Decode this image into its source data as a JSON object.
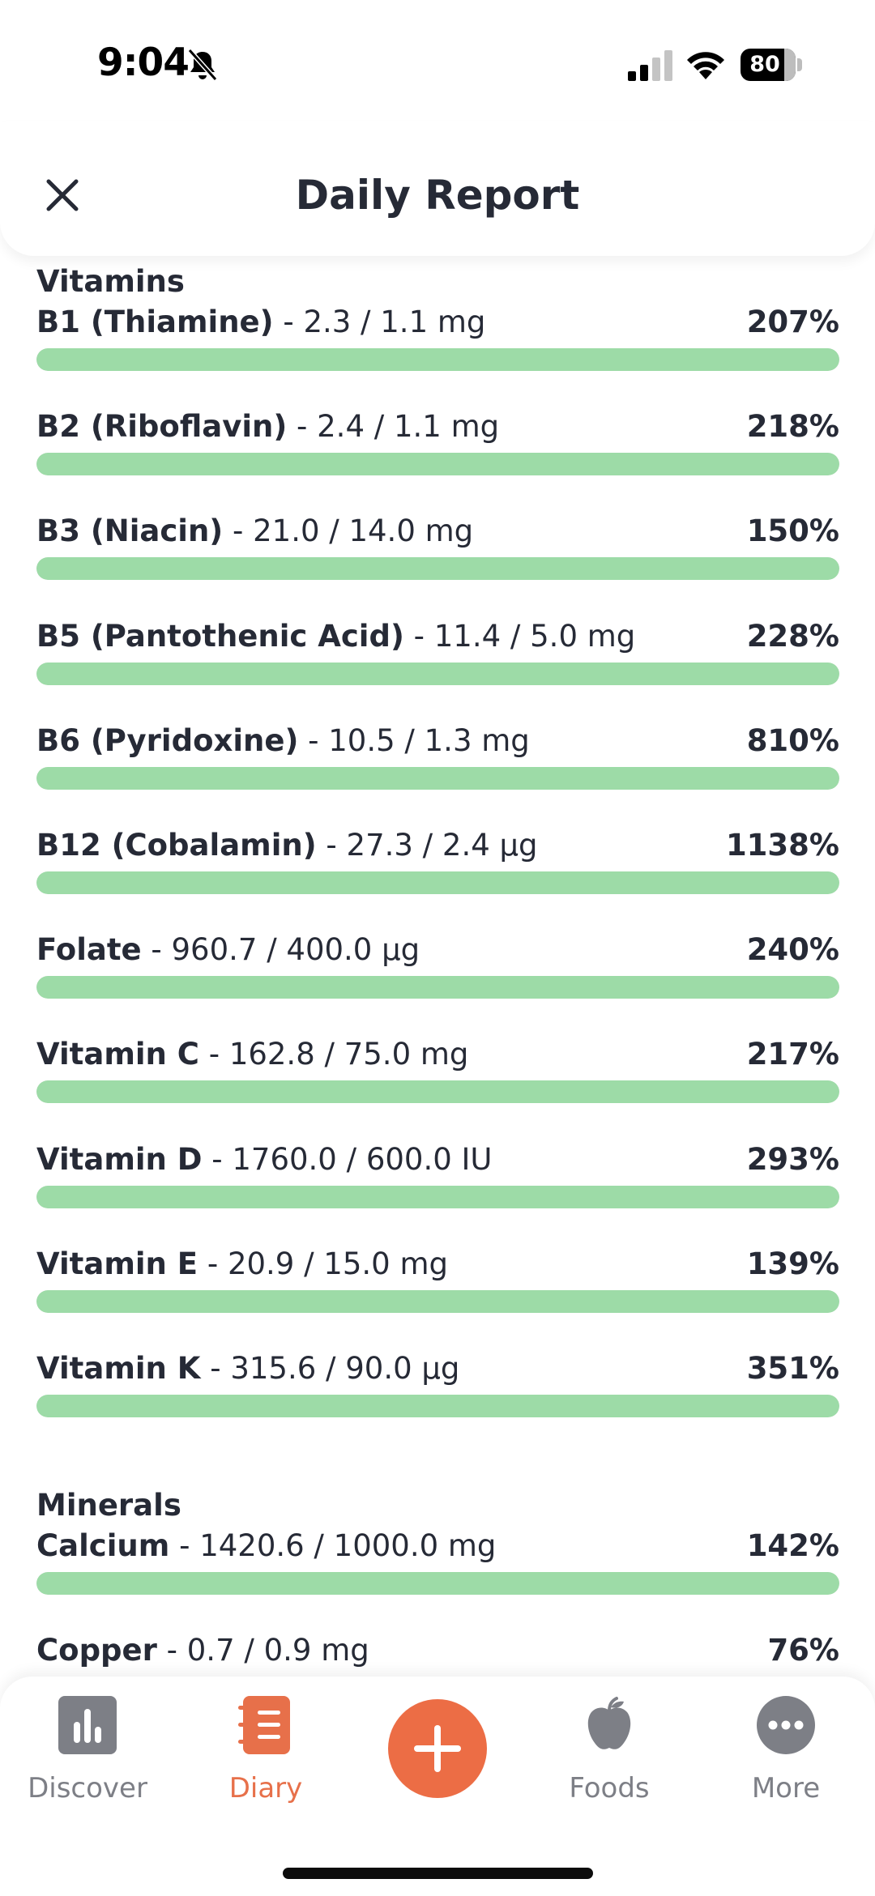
{
  "status_bar": {
    "time": "9:04",
    "battery": "80"
  },
  "header": {
    "title": "Daily Report"
  },
  "sections": [
    {
      "title": "Vitamins",
      "items": [
        {
          "name": "B1 (Thiamine)",
          "amount": "2.3 / 1.1 mg",
          "percent": "207%",
          "fill": 1.0
        },
        {
          "name": "B2 (Riboflavin)",
          "amount": "2.4 / 1.1 mg",
          "percent": "218%",
          "fill": 1.0
        },
        {
          "name": "B3 (Niacin)",
          "amount": "21.0 / 14.0 mg",
          "percent": "150%",
          "fill": 1.0
        },
        {
          "name": "B5 (Pantothenic Acid)",
          "amount": "11.4 / 5.0 mg",
          "percent": "228%",
          "fill": 1.0
        },
        {
          "name": "B6 (Pyridoxine)",
          "amount": "10.5 / 1.3 mg",
          "percent": "810%",
          "fill": 1.0
        },
        {
          "name": "B12 (Cobalamin)",
          "amount": "27.3 / 2.4 µg",
          "percent": "1138%",
          "fill": 1.0
        },
        {
          "name": "Folate",
          "amount": "960.7 / 400.0 µg",
          "percent": "240%",
          "fill": 1.0
        },
        {
          "name": "Vitamin C",
          "amount": "162.8 / 75.0 mg",
          "percent": "217%",
          "fill": 1.0
        },
        {
          "name": "Vitamin D",
          "amount": "1760.0 / 600.0 IU",
          "percent": "293%",
          "fill": 1.0
        },
        {
          "name": "Vitamin E",
          "amount": "20.9 / 15.0 mg",
          "percent": "139%",
          "fill": 1.0
        },
        {
          "name": "Vitamin K",
          "amount": "315.6 / 90.0 µg",
          "percent": "351%",
          "fill": 1.0
        }
      ]
    },
    {
      "title": "Minerals",
      "items": [
        {
          "name": "Calcium",
          "amount": "1420.6 / 1000.0 mg",
          "percent": "142%",
          "fill": 1.0
        },
        {
          "name": "Copper",
          "amount": "0.7 / 0.9 mg",
          "percent": "76%",
          "fill": 0.76
        }
      ]
    }
  ],
  "nav": {
    "discover": "Discover",
    "diary": "Diary",
    "foods": "Foods",
    "more": "More"
  },
  "colors": {
    "accent": "#ec6d45",
    "progress_fill": "#9ddba7",
    "text": "#262a36",
    "nav_inactive": "#7d7f86"
  }
}
